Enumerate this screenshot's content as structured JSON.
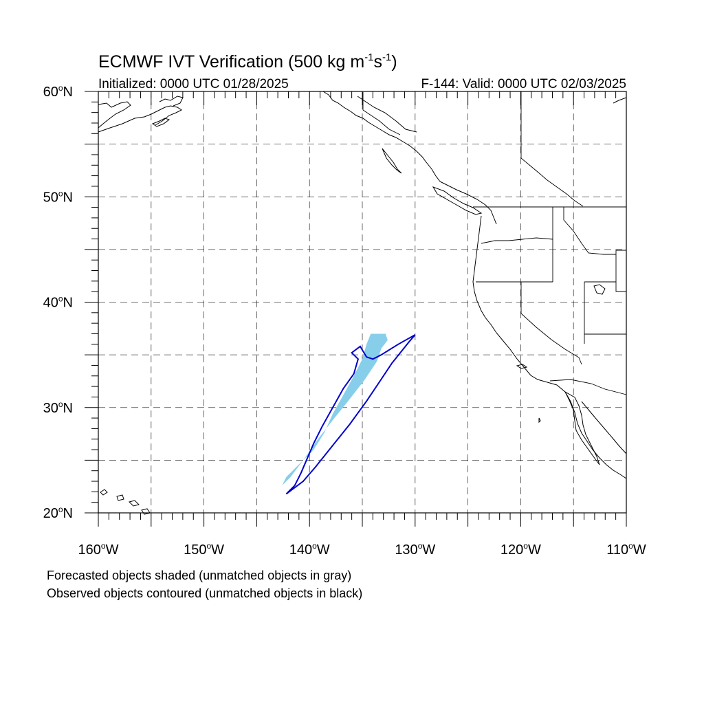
{
  "title": {
    "main": "ECMWF IVT Verification (500 kg m",
    "unit_sup1": "-1",
    "unit_mid": "s",
    "unit_sup2": "-1",
    "unit_close": ")"
  },
  "subtitle": {
    "initialized": "Initialized: 0000 UTC 01/28/2025",
    "valid": "F-144: Valid: 0000 UTC 02/03/2025"
  },
  "map": {
    "lon_min": -160,
    "lon_max": -110,
    "lat_min": 20,
    "lat_max": 60,
    "lat_labels": [
      {
        "value": 60,
        "text": "60",
        "deg": "o",
        "hemi": "N"
      },
      {
        "value": 50,
        "text": "50",
        "deg": "o",
        "hemi": "N"
      },
      {
        "value": 40,
        "text": "40",
        "deg": "o",
        "hemi": "N"
      },
      {
        "value": 30,
        "text": "30",
        "deg": "o",
        "hemi": "N"
      },
      {
        "value": 20,
        "text": "20",
        "deg": "o",
        "hemi": "N"
      }
    ],
    "lon_labels": [
      {
        "value": -160,
        "text": "160",
        "deg": "o",
        "hemi": "W"
      },
      {
        "value": -150,
        "text": "150",
        "deg": "o",
        "hemi": "W"
      },
      {
        "value": -140,
        "text": "140",
        "deg": "o",
        "hemi": "W"
      },
      {
        "value": -130,
        "text": "130",
        "deg": "o",
        "hemi": "W"
      },
      {
        "value": -120,
        "text": "120",
        "deg": "o",
        "hemi": "W"
      },
      {
        "value": -110,
        "text": "110",
        "deg": "o",
        "hemi": "W"
      }
    ],
    "grid_lons": [
      -155,
      -150,
      -145,
      -140,
      -135,
      -130,
      -125,
      -120,
      -115
    ],
    "grid_lats": [
      25,
      30,
      35,
      40,
      45,
      50,
      55
    ],
    "colors": {
      "forecast_fill": "#87ceeb",
      "observed_contour": "#0000cd",
      "land_outline": "#000000"
    }
  },
  "objects": {
    "forecast_shaded": {
      "name": "forecast-object",
      "color": "#87ceeb",
      "lonlat": [
        [
          -142.6,
          22.6
        ],
        [
          -142.2,
          23.4
        ],
        [
          -141.0,
          24.6
        ],
        [
          -139.6,
          26.0
        ],
        [
          -138.6,
          27.6
        ],
        [
          -137.8,
          29.4
        ],
        [
          -136.8,
          31.2
        ],
        [
          -135.8,
          33.0
        ],
        [
          -135.0,
          34.6
        ],
        [
          -134.6,
          36.0
        ],
        [
          -134.2,
          37.0
        ],
        [
          -132.8,
          37.0
        ],
        [
          -132.6,
          36.4
        ],
        [
          -133.2,
          35.6
        ],
        [
          -133.6,
          34.4
        ],
        [
          -134.8,
          32.6
        ],
        [
          -136.2,
          30.8
        ],
        [
          -137.8,
          28.8
        ],
        [
          -139.2,
          27.0
        ],
        [
          -140.6,
          25.0
        ],
        [
          -141.8,
          23.4
        ],
        [
          -142.6,
          22.6
        ]
      ]
    },
    "observed_contour": {
      "name": "observed-object",
      "color": "#0000cd",
      "lonlat": [
        [
          -142.2,
          21.8
        ],
        [
          -141.4,
          22.6
        ],
        [
          -140.8,
          23.8
        ],
        [
          -140.2,
          25.2
        ],
        [
          -139.6,
          26.6
        ],
        [
          -138.8,
          28.2
        ],
        [
          -137.8,
          30.0
        ],
        [
          -136.8,
          31.8
        ],
        [
          -135.8,
          33.2
        ],
        [
          -135.4,
          34.6
        ],
        [
          -136.0,
          35.2
        ],
        [
          -135.2,
          35.8
        ],
        [
          -134.6,
          34.8
        ],
        [
          -134.0,
          34.6
        ],
        [
          -133.2,
          35.0
        ],
        [
          -131.6,
          36.0
        ],
        [
          -130.0,
          36.9
        ],
        [
          -130.6,
          36.2
        ],
        [
          -132.2,
          34.2
        ],
        [
          -133.4,
          32.4
        ],
        [
          -134.6,
          30.6
        ],
        [
          -136.2,
          28.4
        ],
        [
          -137.8,
          26.4
        ],
        [
          -139.4,
          24.4
        ],
        [
          -140.6,
          23.0
        ],
        [
          -142.2,
          21.8
        ]
      ]
    }
  },
  "caption": {
    "line1": "Forecasted objects shaded (unmatched objects in gray)",
    "line2": "Observed objects contoured (unmatched objects in black)"
  }
}
